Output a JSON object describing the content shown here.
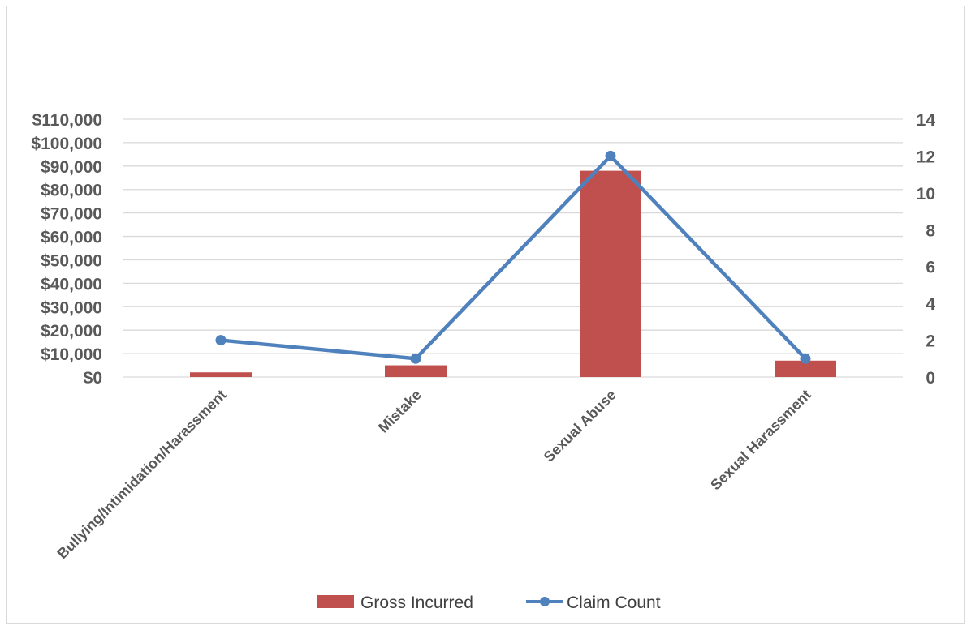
{
  "chart_data": {
    "type": "bar",
    "title": "",
    "categories": [
      "Bullying/Intimidation/Harassment",
      "Mistake",
      "Sexual Abuse",
      "Sexual Harassment"
    ],
    "series": [
      {
        "name": "Gross Incurred",
        "type": "bar",
        "axis": "left",
        "color": "#c0504d",
        "values": [
          2000,
          5000,
          88000,
          7000
        ]
      },
      {
        "name": "Claim Count",
        "type": "line",
        "axis": "right",
        "color": "#4f81bd",
        "values": [
          2,
          1,
          12,
          1
        ]
      }
    ],
    "y_left": {
      "min": 0,
      "max": 110000,
      "step": 10000,
      "tick_labels": [
        "$0",
        "$10,000",
        "$20,000",
        "$30,000",
        "$40,000",
        "$50,000",
        "$60,000",
        "$70,000",
        "$80,000",
        "$90,000",
        "$100,000",
        "$110,000"
      ]
    },
    "y_right": {
      "min": 0,
      "max": 14,
      "step": 2,
      "tick_labels": [
        "0",
        "2",
        "4",
        "6",
        "8",
        "10",
        "12",
        "14"
      ]
    },
    "grid": true,
    "legend": {
      "position": "bottom",
      "items": [
        "Gross Incurred",
        "Claim Count"
      ]
    }
  }
}
